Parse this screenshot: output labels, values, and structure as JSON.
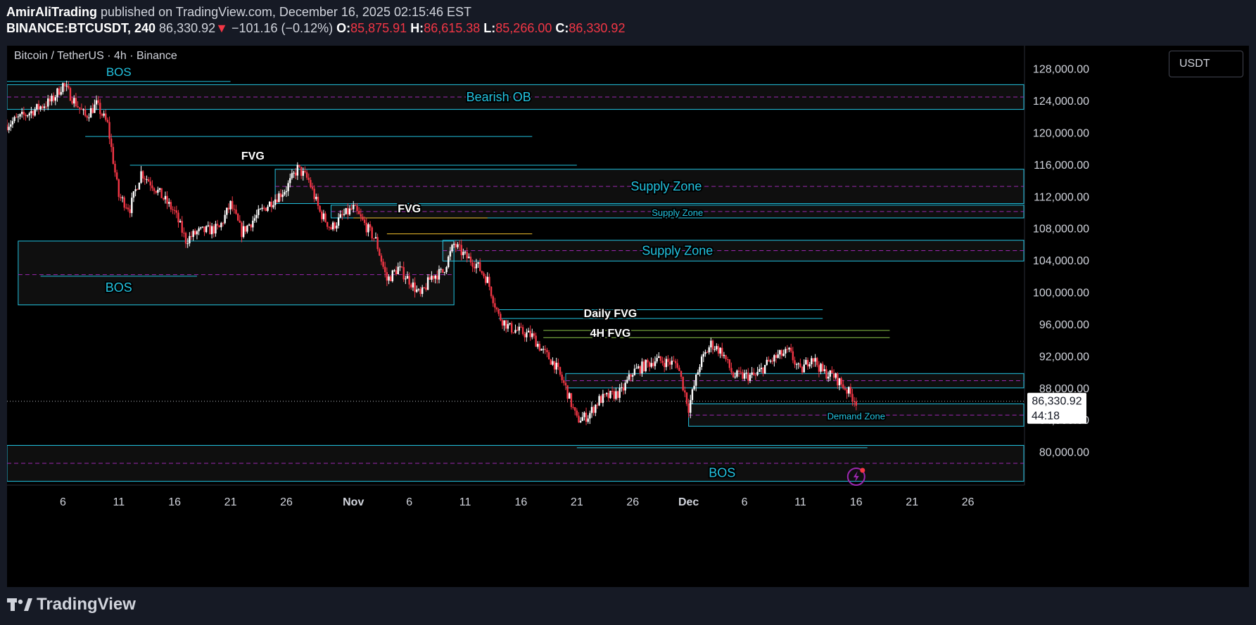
{
  "header": {
    "author": "AmirAliTrading",
    "published_text": "published on TradingView.com, December 16, 2025 02:15:46 EST",
    "symbol": "BINANCE:BTCUSDT, 240",
    "last": "86,330.92",
    "change_arrow": "▼",
    "change": "−101.16 (−0.12%)",
    "o_label": "O:",
    "o": "85,875.91",
    "h_label": "H:",
    "h": "86,615.38",
    "l_label": "L:",
    "l": "85,266.00",
    "c_label": "C:",
    "c": "86,330.92"
  },
  "chart_title": "Bitcoin / TetherUS · 4h · Binance",
  "currency_button": "USDT",
  "price_label": {
    "price": "86,330.92",
    "countdown": "44:18"
  },
  "colors": {
    "background": "#000000",
    "up": "#ffffff",
    "down": "#f23645",
    "zone_line": "#22c3e0",
    "zone_label": "#22c3e0",
    "zone_mid": "#9c27b0",
    "fvg_line": "#22c3e0",
    "fvg_yellow": "#f2c12e",
    "fvg_green": "#8bc34a",
    "axis_text": "#d1d4dc",
    "white_label": "#ffffff"
  },
  "footer": {
    "logo_text": "TradingView",
    "logo_icon": "tradingview-logo-icon",
    "alert_icon": "lightning-icon"
  },
  "chart_data": {
    "type": "candlestick",
    "title": "Bitcoin / TetherUS · 4h · Binance",
    "y_ticks": [
      80000,
      84000,
      88000,
      92000,
      96000,
      100000,
      104000,
      108000,
      112000,
      116000,
      120000,
      124000,
      128000
    ],
    "y_tick_labels": [
      "80,000.00",
      "84,000.00",
      "88,000.00",
      "92,000.00",
      "96,000.00",
      "100,000.00",
      "104,000.00",
      "108,000.00",
      "112,000.00",
      "116,000.00",
      "120,000.00",
      "124,000.00",
      "128,000.00"
    ],
    "y_range": [
      76000,
      128500
    ],
    "x_range": [
      "2025-10-01",
      "2025-12-31"
    ],
    "x_ticks": [
      "2025-10-06",
      "2025-10-11",
      "2025-10-16",
      "2025-10-21",
      "2025-10-26",
      "2025-11-01",
      "2025-11-06",
      "2025-11-11",
      "2025-11-16",
      "2025-11-21",
      "2025-11-26",
      "2025-12-01",
      "2025-12-06",
      "2025-12-11",
      "2025-12-16",
      "2025-12-21",
      "2025-12-26"
    ],
    "x_tick_labels": [
      "6",
      "11",
      "16",
      "21",
      "26",
      "Nov",
      "6",
      "11",
      "16",
      "21",
      "26",
      "Dec",
      "6",
      "11",
      "16",
      "21",
      "26"
    ],
    "last_price": 86330.92,
    "price_path": [
      [
        "2025-10-01",
        121000
      ],
      [
        "2025-10-03",
        122500
      ],
      [
        "2025-10-05",
        124000
      ],
      [
        "2025-10-06",
        126000
      ],
      [
        "2025-10-08",
        122000
      ],
      [
        "2025-10-09",
        123500
      ],
      [
        "2025-10-10",
        121000
      ],
      [
        "2025-10-11",
        112000
      ],
      [
        "2025-10-12",
        110500
      ],
      [
        "2025-10-13",
        115000
      ],
      [
        "2025-10-14",
        113500
      ],
      [
        "2025-10-16",
        110000
      ],
      [
        "2025-10-17",
        106500
      ],
      [
        "2025-10-18",
        107500
      ],
      [
        "2025-10-20",
        108000
      ],
      [
        "2025-10-21",
        111000
      ],
      [
        "2025-10-22",
        107500
      ],
      [
        "2025-10-24",
        110500
      ],
      [
        "2025-10-26",
        113000
      ],
      [
        "2025-10-27",
        115500
      ],
      [
        "2025-10-28",
        114000
      ],
      [
        "2025-10-29",
        110000
      ],
      [
        "2025-10-30",
        108000
      ],
      [
        "2025-10-31",
        109500
      ],
      [
        "2025-11-01",
        110500
      ],
      [
        "2025-11-03",
        106500
      ],
      [
        "2025-11-04",
        101500
      ],
      [
        "2025-11-05",
        103000
      ],
      [
        "2025-11-06",
        101500
      ],
      [
        "2025-11-07",
        99500
      ],
      [
        "2025-11-08",
        102000
      ],
      [
        "2025-11-09",
        102500
      ],
      [
        "2025-11-10",
        106000
      ],
      [
        "2025-11-11",
        104500
      ],
      [
        "2025-11-12",
        103500
      ],
      [
        "2025-11-13",
        101500
      ],
      [
        "2025-11-14",
        97000
      ],
      [
        "2025-11-15",
        95500
      ],
      [
        "2025-11-17",
        94500
      ],
      [
        "2025-11-18",
        92500
      ],
      [
        "2025-11-19",
        91000
      ],
      [
        "2025-11-20",
        88000
      ],
      [
        "2025-11-21",
        84000
      ],
      [
        "2025-11-22",
        84500
      ],
      [
        "2025-11-23",
        86500
      ],
      [
        "2025-11-25",
        87500
      ],
      [
        "2025-11-26",
        90000
      ],
      [
        "2025-11-28",
        91500
      ],
      [
        "2025-11-30",
        91000
      ],
      [
        "2025-12-01",
        85500
      ],
      [
        "2025-12-02",
        91000
      ],
      [
        "2025-12-03",
        93500
      ],
      [
        "2025-12-04",
        92500
      ],
      [
        "2025-12-05",
        89500
      ],
      [
        "2025-12-07",
        89500
      ],
      [
        "2025-12-08",
        91000
      ],
      [
        "2025-12-09",
        92000
      ],
      [
        "2025-12-10",
        92500
      ],
      [
        "2025-12-11",
        90000
      ],
      [
        "2025-12-12",
        92000
      ],
      [
        "2025-12-13",
        90000
      ],
      [
        "2025-12-14",
        89500
      ],
      [
        "2025-12-15",
        88000
      ],
      [
        "2025-12-16",
        86330
      ]
    ],
    "annotations": {
      "labels": [
        "BOS",
        "Bearish OB",
        "FVG",
        "Supply Zone",
        "Supply Zone",
        "FVG",
        "Supply Zone",
        "BOS",
        "Daily FVG",
        "4H FVG",
        "Demand Zone",
        "BOS"
      ],
      "zones": [
        {
          "kind": "bos",
          "label": 0,
          "y": 126400,
          "x0": "2025-10-01",
          "x1": "2025-10-21"
        },
        {
          "kind": "zone",
          "label": 1,
          "y0": 126000,
          "y1": 122900,
          "x0": "2025-10-01",
          "x1": "2025-12-31",
          "label_at": "2025-11-14"
        },
        {
          "kind": "line",
          "y": 119500,
          "x0": "2025-10-08",
          "x1": "2025-11-17"
        },
        {
          "kind": "fvg",
          "label": 2,
          "y": 115900,
          "x0": "2025-10-12",
          "x1": "2025-11-21",
          "label_at": "2025-10-23"
        },
        {
          "kind": "zone",
          "label": 3,
          "y0": 115400,
          "y1": 111100,
          "x0": "2025-10-25",
          "x1": "2025-12-31",
          "label_at": "2025-11-29"
        },
        {
          "kind": "zone",
          "label": 4,
          "y0": 110900,
          "y1": 109300,
          "x0": "2025-10-30",
          "x1": "2025-12-31",
          "label_at": "2025-11-30",
          "small": true
        },
        {
          "kind": "fvg_yellow",
          "label": 5,
          "y": 109300,
          "x0": "2025-11-01",
          "x1": "2025-11-13",
          "label_at": "2025-11-06"
        },
        {
          "kind": "fvg_yellow",
          "y": 107300,
          "x0": "2025-11-04",
          "x1": "2025-11-17"
        },
        {
          "kind": "zone",
          "label": 6,
          "y0": 106500,
          "y1": 103900,
          "x0": "2025-11-09",
          "x1": "2025-12-31",
          "label_at": "2025-11-30"
        },
        {
          "kind": "box",
          "label": 7,
          "y0": 106400,
          "y1": 98400,
          "x0": "2025-10-02",
          "x1": "2025-11-10",
          "mid": 102200,
          "bos_y": 102000,
          "bos_x0": "2025-10-04",
          "bos_x1": "2025-10-18",
          "label_at": "2025-10-11"
        },
        {
          "kind": "fvg",
          "label": 8,
          "y0": 97800,
          "y1": 96700,
          "x0": "2025-11-14",
          "x1": "2025-12-13",
          "label_at": "2025-11-24"
        },
        {
          "kind": "fvg_green",
          "label": 9,
          "y0": 95200,
          "y1": 94300,
          "x0": "2025-11-18",
          "x1": "2025-12-19",
          "label_at": "2025-11-24"
        },
        {
          "kind": "zone",
          "y0": 89800,
          "y1": 88000,
          "x0": "2025-11-20",
          "x1": "2025-12-31"
        },
        {
          "kind": "zone",
          "label": 10,
          "y0": 86000,
          "y1": 83200,
          "x0": "2025-12-01",
          "x1": "2025-12-31",
          "label_at": "2025-12-16",
          "small": true
        },
        {
          "kind": "zone",
          "label": 11,
          "y0": 80800,
          "y1": 76300,
          "x0": "2025-10-01",
          "x1": "2025-12-31",
          "label_at": "2025-12-04",
          "bos_y": 80500,
          "bos_x0": "2025-11-21",
          "bos_x1": "2025-12-17"
        }
      ]
    }
  }
}
